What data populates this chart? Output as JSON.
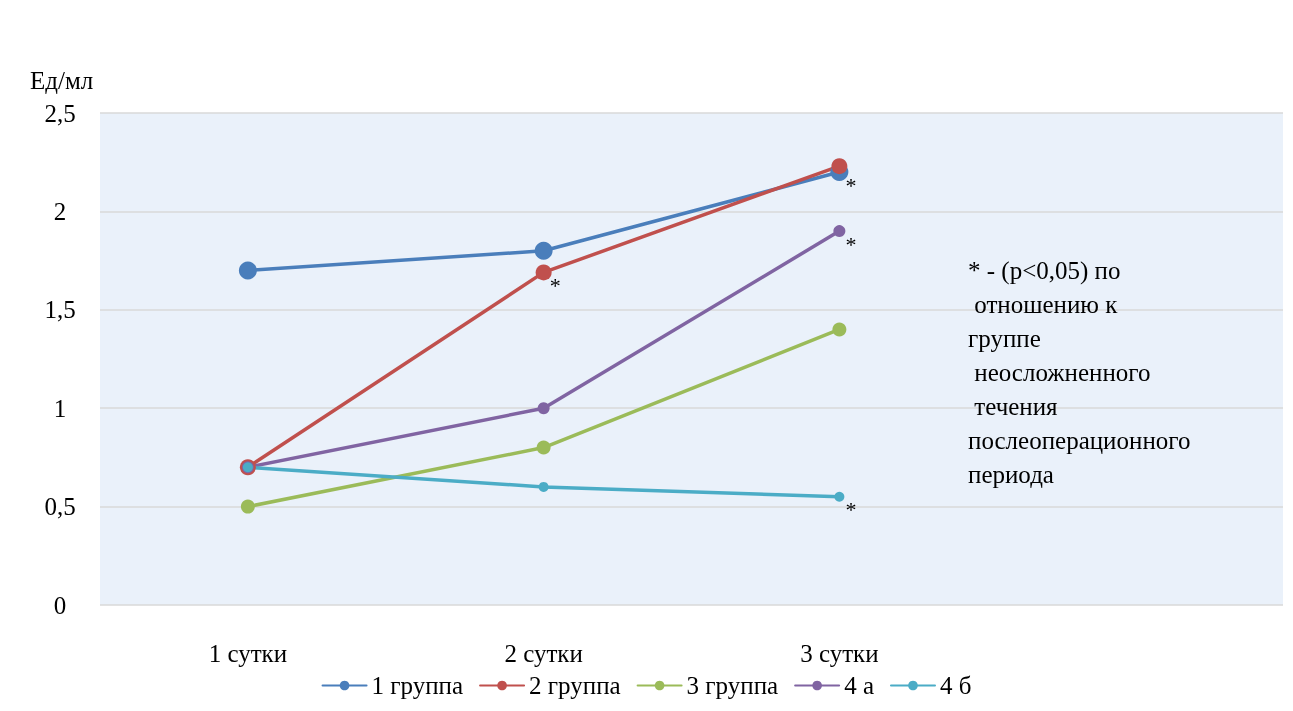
{
  "chart_data": {
    "type": "line",
    "ylabel": "Ед/мл",
    "categories": [
      "1 сутки",
      "2 сутки",
      "3 сутки",
      null
    ],
    "series": [
      {
        "name": "1 группа",
        "color": "#4a7ebb",
        "values": [
          1.7,
          1.8,
          2.2,
          null
        ]
      },
      {
        "name": "2 группа",
        "color": "#c0504d",
        "values": [
          0.7,
          1.69,
          2.23,
          null
        ]
      },
      {
        "name": "3 группа",
        "color": "#9bbb59",
        "values": [
          0.5,
          0.8,
          1.4,
          null
        ]
      },
      {
        "name": "4 а",
        "color": "#8064a2",
        "values": [
          0.7,
          1.0,
          1.9,
          null
        ]
      },
      {
        "name": "4 б",
        "color": "#4bacc6",
        "values": [
          0.7,
          0.6,
          0.55,
          null
        ]
      }
    ],
    "ylim": [
      0,
      2.5
    ],
    "yticks": [
      0,
      {
        "value": 0.5,
        "label": "0,5"
      },
      1,
      {
        "value": 1.5,
        "label": "1,5"
      },
      2,
      {
        "value": 2.5,
        "label": "2,5"
      }
    ],
    "grid": "y",
    "legend": "bottom",
    "marker": "circle",
    "line_style": "solid",
    "annotations": [
      {
        "text": "*",
        "x": "2 сутки",
        "y": 1.69
      },
      {
        "text": "*",
        "x": "3 сутки",
        "y": 2.2
      },
      {
        "text": "*",
        "x": "3 сутки",
        "y": 1.9
      },
      {
        "text": "*",
        "x": "3 сутки",
        "y": 0.55
      },
      "* - (p<0,05) по\n отношению к\nгруппе\n неосложненного\n течения\nпослеоперационного\nпериода"
    ]
  }
}
